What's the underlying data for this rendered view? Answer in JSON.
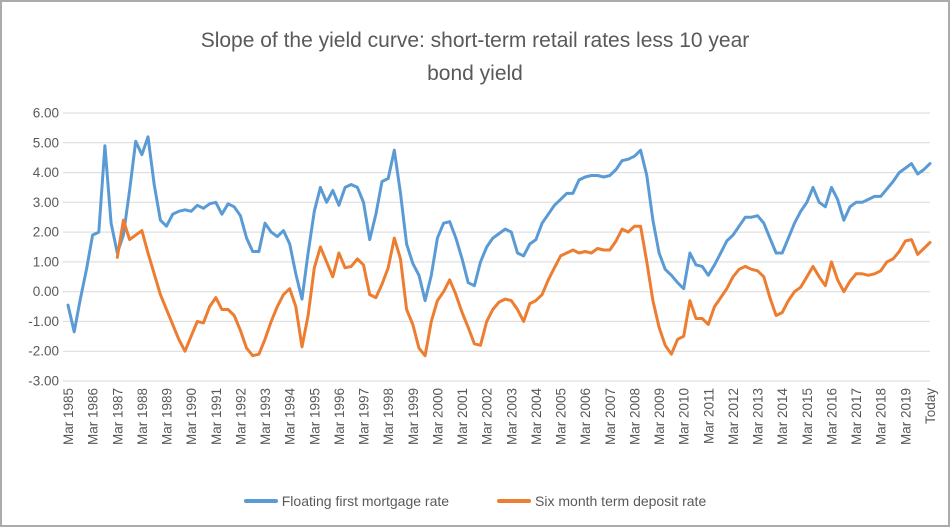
{
  "title": {
    "line1": "Slope of the yield curve: short-term retail rates less 10 year",
    "line2": "bond yield",
    "color": "#595959"
  },
  "colors": {
    "series_blue": "#5B9BD5",
    "series_orange": "#ED7D31",
    "gridline": "#D9D9D9",
    "text": "#595959",
    "frame_border": "#ABABAB",
    "background": "#FFFFFF"
  },
  "chart_data": {
    "type": "line",
    "title": "Slope of the yield curve: short-term retail rates less 10 year bond yield",
    "xlabel": "",
    "ylabel": "",
    "ylim": [
      -3,
      6
    ],
    "grid": "horizontal",
    "legend_position": "bottom",
    "x_resolution": "quarterly",
    "x_start": "Mar 1985",
    "x_end": "Today",
    "y_tick_labels": [
      "6.00",
      "5.00",
      "4.00",
      "3.00",
      "2.00",
      "1.00",
      "0.00",
      "-1.00",
      "-2.00",
      "-3.00"
    ],
    "y_tick_values": [
      6,
      5,
      4,
      3,
      2,
      1,
      0,
      -1,
      -2,
      -3
    ],
    "x_tick_labels": [
      "Mar 1985",
      "Mar 1986",
      "Mar 1987",
      "Mar 1988",
      "Mar 1989",
      "Mar 1990",
      "Mar 1991",
      "Mar 1992",
      "Mar 1993",
      "Mar 1994",
      "Mar 1995",
      "Mar 1996",
      "Mar 1997",
      "Mar 1998",
      "Mar 1999",
      "Mar 2000",
      "Mar 2001",
      "Mar 2002",
      "Mar 2003",
      "Mar 2004",
      "Mar 2005",
      "Mar 2006",
      "Mar 2007",
      "Mar 2008",
      "Mar 2009",
      "Mar 2010",
      "Mar 2011",
      "Mar 2012",
      "Mar 2013",
      "Mar 2014",
      "Mar 2015",
      "Mar 2016",
      "Mar 2017",
      "Mar 2018",
      "Mar 2019",
      "Today"
    ],
    "x_ticks_every_n_points": 4,
    "series": [
      {
        "name": "Floating first mortgage rate",
        "color": "#5B9BD5",
        "values": [
          -0.45,
          -1.35,
          -0.25,
          0.75,
          1.9,
          2.0,
          4.9,
          2.3,
          1.3,
          1.9,
          3.4,
          5.05,
          4.6,
          5.2,
          3.6,
          2.4,
          2.2,
          2.6,
          2.7,
          2.75,
          2.7,
          2.9,
          2.8,
          2.95,
          3.0,
          2.6,
          2.95,
          2.85,
          2.55,
          1.8,
          1.35,
          1.35,
          2.3,
          2.0,
          1.85,
          2.05,
          1.6,
          0.6,
          -0.25,
          1.3,
          2.7,
          3.5,
          3.0,
          3.4,
          2.9,
          3.5,
          3.6,
          3.5,
          3.0,
          1.75,
          2.6,
          3.7,
          3.8,
          4.75,
          3.3,
          1.6,
          0.95,
          0.55,
          -0.3,
          0.55,
          1.8,
          2.3,
          2.35,
          1.8,
          1.1,
          0.3,
          0.2,
          1.0,
          1.5,
          1.8,
          1.95,
          2.1,
          2.0,
          1.3,
          1.2,
          1.6,
          1.75,
          2.3,
          2.6,
          2.9,
          3.1,
          3.3,
          3.3,
          3.75,
          3.85,
          3.9,
          3.9,
          3.85,
          3.9,
          4.1,
          4.4,
          4.45,
          4.55,
          4.75,
          3.9,
          2.4,
          1.3,
          0.75,
          0.55,
          0.3,
          0.1,
          1.3,
          0.9,
          0.85,
          0.55,
          0.9,
          1.3,
          1.7,
          1.9,
          2.2,
          2.5,
          2.5,
          2.55,
          2.3,
          1.8,
          1.3,
          1.3,
          1.8,
          2.3,
          2.7,
          3.0,
          3.5,
          3.0,
          2.85,
          3.5,
          3.1,
          2.4,
          2.85,
          3.0,
          3.0,
          3.1,
          3.2,
          3.2,
          3.45,
          3.7,
          4.0,
          4.15,
          4.3,
          3.95,
          4.1,
          4.3
        ]
      },
      {
        "name": "Six month term deposit rate",
        "color": "#ED7D31",
        "values": [
          null,
          null,
          null,
          null,
          null,
          null,
          null,
          null,
          1.15,
          2.4,
          1.75,
          1.9,
          2.05,
          1.3,
          0.6,
          -0.1,
          -0.6,
          -1.1,
          -1.6,
          -2.0,
          -1.5,
          -1.0,
          -1.05,
          -0.5,
          -0.2,
          -0.6,
          -0.6,
          -0.8,
          -1.3,
          -1.9,
          -2.15,
          -2.1,
          -1.6,
          -1.0,
          -0.5,
          -0.1,
          0.1,
          -0.5,
          -1.85,
          -0.8,
          0.8,
          1.5,
          1.0,
          0.5,
          1.3,
          0.8,
          0.85,
          1.1,
          0.9,
          -0.1,
          -0.2,
          0.25,
          0.8,
          1.8,
          1.1,
          -0.6,
          -1.1,
          -1.9,
          -2.15,
          -1.0,
          -0.3,
          0.0,
          0.4,
          -0.1,
          -0.7,
          -1.2,
          -1.75,
          -1.8,
          -1.0,
          -0.6,
          -0.35,
          -0.25,
          -0.3,
          -0.6,
          -1.0,
          -0.4,
          -0.3,
          -0.1,
          0.4,
          0.8,
          1.2,
          1.3,
          1.4,
          1.3,
          1.35,
          1.3,
          1.45,
          1.4,
          1.4,
          1.7,
          2.1,
          2.0,
          2.2,
          2.2,
          1.0,
          -0.3,
          -1.2,
          -1.8,
          -2.1,
          -1.6,
          -1.5,
          -0.3,
          -0.9,
          -0.9,
          -1.1,
          -0.5,
          -0.2,
          0.1,
          0.5,
          0.75,
          0.85,
          0.75,
          0.7,
          0.5,
          -0.2,
          -0.8,
          -0.7,
          -0.3,
          0.0,
          0.15,
          0.5,
          0.85,
          0.5,
          0.2,
          1.0,
          0.4,
          0.0,
          0.35,
          0.6,
          0.6,
          0.55,
          0.6,
          0.7,
          1.0,
          1.1,
          1.35,
          1.7,
          1.75,
          1.25,
          1.45,
          1.65
        ]
      }
    ]
  },
  "legend": {
    "items": [
      {
        "label": "Floating first mortgage rate",
        "color": "#5B9BD5"
      },
      {
        "label": "Six month term deposit rate",
        "color": "#ED7D31"
      }
    ]
  }
}
